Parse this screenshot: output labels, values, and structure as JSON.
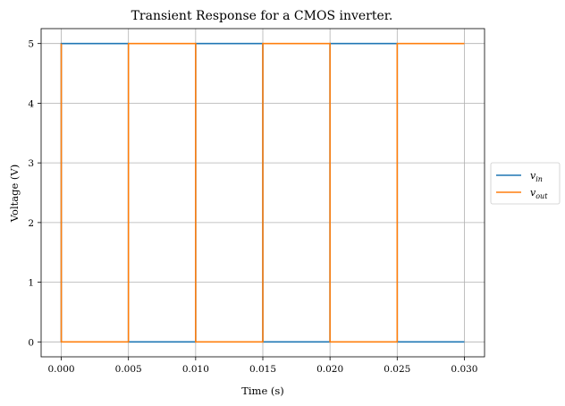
{
  "chart_data": {
    "type": "line",
    "title": "Transient Response for a CMOS inverter.",
    "xlabel": "Time (s)",
    "ylabel": "Voltage (V)",
    "xlim": [
      -0.0015,
      0.0315
    ],
    "ylim": [
      -0.25,
      5.25
    ],
    "xticks": [
      0.0,
      0.005,
      0.01,
      0.015,
      0.02,
      0.025,
      0.03
    ],
    "xtick_labels": [
      "0.000",
      "0.005",
      "0.010",
      "0.015",
      "0.020",
      "0.025",
      "0.030"
    ],
    "yticks": [
      0,
      1,
      2,
      3,
      4,
      5
    ],
    "ytick_labels": [
      "0",
      "1",
      "2",
      "3",
      "4",
      "5"
    ],
    "grid": true,
    "legend_position": "center-right outside",
    "series": [
      {
        "name": "v_in",
        "label_base": "v",
        "label_sub": "in",
        "color": "#1f77b4",
        "x": [
          0,
          0,
          0.005,
          0.005,
          0.01,
          0.01,
          0.015,
          0.015,
          0.02,
          0.02,
          0.025,
          0.025,
          0.03
        ],
        "y": [
          0,
          5,
          5,
          0,
          0,
          5,
          5,
          0,
          0,
          5,
          5,
          0,
          0
        ]
      },
      {
        "name": "v_out",
        "label_base": "v",
        "label_sub": "out",
        "color": "#ff7f0e",
        "x": [
          0,
          0,
          0.005,
          0.005,
          0.01,
          0.01,
          0.015,
          0.015,
          0.02,
          0.02,
          0.025,
          0.025,
          0.03
        ],
        "y": [
          5,
          0,
          0,
          5,
          5,
          0,
          0,
          5,
          5,
          0,
          0,
          5,
          5
        ]
      }
    ]
  }
}
